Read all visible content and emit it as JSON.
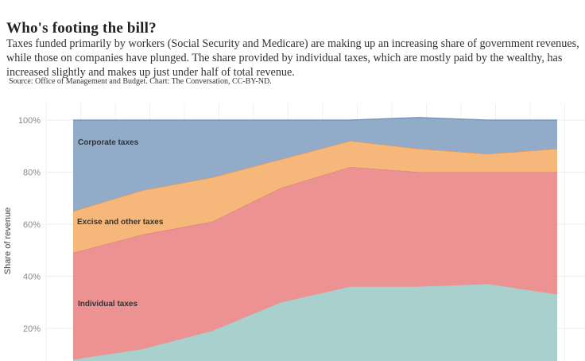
{
  "title": "Who's footing the bill?",
  "subtitle": "Taxes funded primarily by workers (Social Security and Medicare) are making up an increasing share of government revenues, while those on companies have plunged. The share provided by individual taxes, which are mostly paid by the wealthy, has increased slightly and makes up just under half of total revenue.",
  "source": "Source: Office of Management and Budget. Chart: The Conversation, CC-BY-ND.",
  "chart_data": {
    "type": "area",
    "stacked": true,
    "ylabel": "Share of revenue",
    "ylim": [
      0,
      100
    ],
    "yticks": [
      "20%",
      "40%",
      "60%",
      "80%",
      "100%"
    ],
    "ytick_values": [
      20,
      40,
      60,
      80,
      100
    ],
    "grid": true,
    "x": [
      1,
      2,
      3,
      4,
      5,
      6,
      7,
      8
    ],
    "series": [
      {
        "label_key": "",
        "values": [
          8,
          12,
          19,
          30,
          36,
          36,
          37,
          33
        ],
        "color": "#a8d1ce"
      },
      {
        "name": "Individual taxes",
        "values": [
          41,
          44,
          42,
          44,
          46,
          44,
          43,
          47
        ],
        "color": "#ec9293",
        "line": "#e07b7b"
      },
      {
        "name": "Excise and other taxes",
        "values": [
          16,
          17,
          17,
          11,
          10,
          9,
          7,
          9
        ],
        "color": "#f5b87a",
        "line": "#f0934d"
      },
      {
        "name": "Corporate taxes",
        "values": [
          35,
          27,
          22,
          15,
          8,
          12,
          13,
          11
        ],
        "color": "#91abc8",
        "line": "#6f8fb3"
      }
    ]
  }
}
